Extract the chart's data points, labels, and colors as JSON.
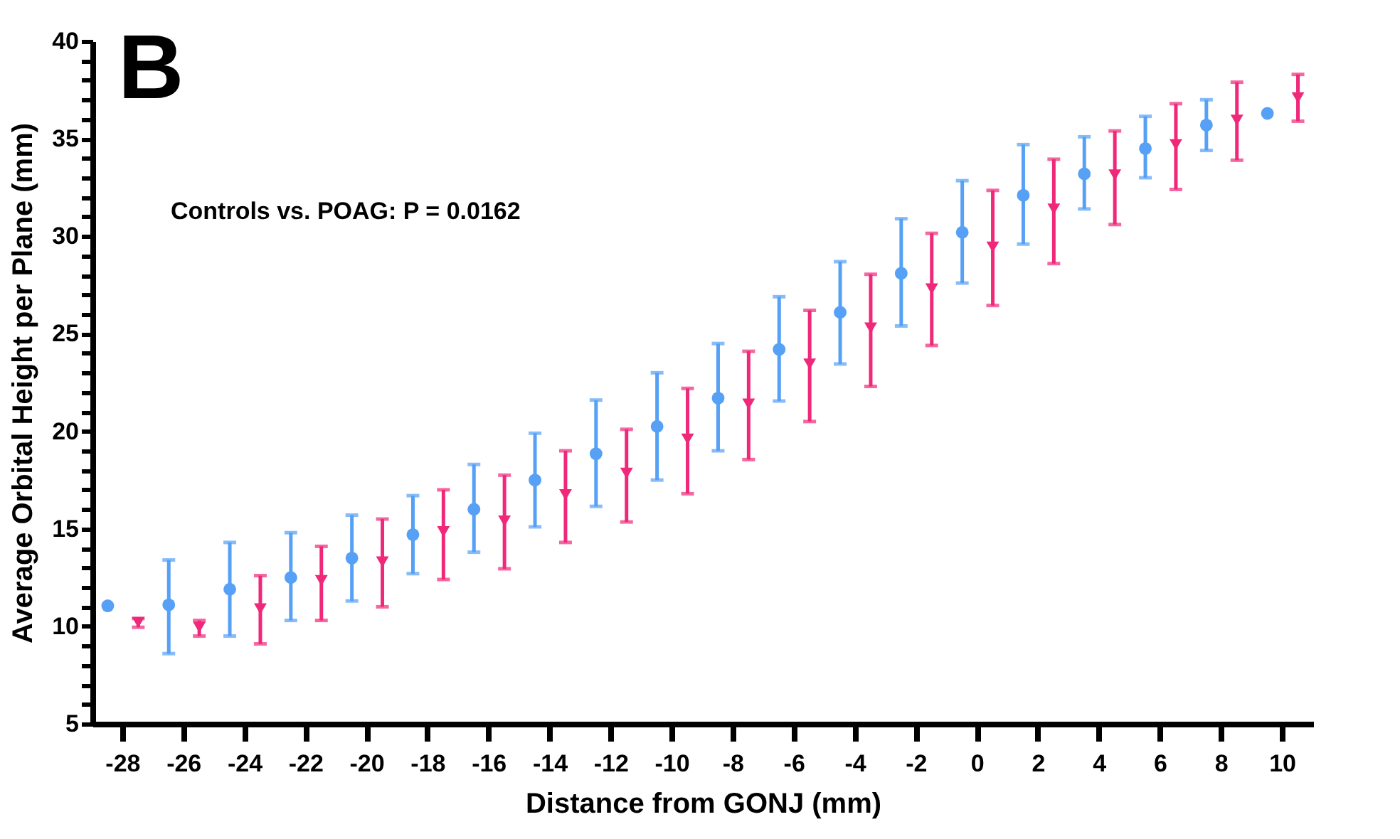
{
  "chart_data": {
    "type": "scatter",
    "title": "B",
    "xlabel": "Distance from GONJ (mm)",
    "ylabel": "Average Orbital Height per Plane (mm)",
    "annotations": [
      "Controls vs. POAG: P = 0.0162"
    ],
    "categories": [
      "-28",
      "-26",
      "-24",
      "-22",
      "-20",
      "-18",
      "-16",
      "-14",
      "-12",
      "-10",
      "-8",
      "-6",
      "-4",
      "-2",
      "0",
      "2",
      "4",
      "6",
      "8",
      "10"
    ],
    "ylim": [
      5,
      40
    ],
    "yticks": [
      5,
      {
        "value": 6,
        "label": null
      },
      {
        "value": 7,
        "label": null
      },
      {
        "value": 8,
        "label": null
      },
      {
        "value": 9,
        "label": null
      },
      10,
      {
        "value": 11,
        "label": null
      },
      {
        "value": 12,
        "label": null
      },
      {
        "value": 13,
        "label": null
      },
      {
        "value": 14,
        "label": null
      },
      15,
      {
        "value": 16,
        "label": null
      },
      {
        "value": 17,
        "label": null
      },
      {
        "value": 18,
        "label": null
      },
      {
        "value": 19,
        "label": null
      },
      20,
      {
        "value": 21,
        "label": null
      },
      {
        "value": 22,
        "label": null
      },
      {
        "value": 23,
        "label": null
      },
      {
        "value": 24,
        "label": null
      },
      25,
      {
        "value": 26,
        "label": null
      },
      {
        "value": 27,
        "label": null
      },
      {
        "value": 28,
        "label": null
      },
      {
        "value": 29,
        "label": null
      },
      30,
      {
        "value": 31,
        "label": null
      },
      {
        "value": 32,
        "label": null
      },
      {
        "value": 33,
        "label": null
      },
      {
        "value": 34,
        "label": null
      },
      35,
      {
        "value": 36,
        "label": null
      },
      {
        "value": 37,
        "label": null
      },
      {
        "value": 38,
        "label": null
      },
      {
        "value": 39,
        "label": null
      },
      40
    ],
    "grid": false,
    "series": [
      {
        "color": "#56a0f5",
        "marker": "circle",
        "values": [
          11.05,
          11.1,
          11.9,
          12.5,
          13.5,
          14.7,
          16.0,
          17.5,
          18.85,
          20.25,
          21.7,
          24.2,
          26.1,
          28.1,
          30.2,
          32.1,
          33.2,
          34.5,
          35.7,
          36.3
        ],
        "errors": [
          null,
          [
            8.6,
            13.4
          ],
          [
            9.5,
            14.3
          ],
          [
            10.3,
            14.8
          ],
          [
            11.3,
            15.7
          ],
          [
            12.7,
            16.7
          ],
          [
            13.8,
            18.3
          ],
          [
            15.1,
            19.9
          ],
          [
            16.15,
            21.6
          ],
          [
            17.5,
            23.0
          ],
          [
            19.0,
            24.5
          ],
          [
            21.55,
            26.9
          ],
          [
            23.45,
            28.7
          ],
          [
            25.4,
            30.9
          ],
          [
            27.6,
            32.85
          ],
          [
            29.6,
            34.7
          ],
          [
            31.4,
            35.1
          ],
          [
            33.0,
            36.15
          ],
          [
            34.4,
            37.0
          ],
          null
        ]
      },
      {
        "color": "#f0287a",
        "marker": "triangle-down",
        "values": [
          10.2,
          9.95,
          10.9,
          12.35,
          13.3,
          14.85,
          15.4,
          16.75,
          17.85,
          19.6,
          21.4,
          23.45,
          25.3,
          27.3,
          29.45,
          31.4,
          33.15,
          34.7,
          35.95,
          37.1
        ],
        "errors": [
          [
            9.95,
            10.4
          ],
          [
            9.5,
            10.3
          ],
          [
            9.1,
            12.6
          ],
          [
            10.3,
            14.1
          ],
          [
            11.0,
            15.5
          ],
          [
            12.4,
            17.0
          ],
          [
            12.95,
            17.75
          ],
          [
            14.3,
            19.0
          ],
          [
            15.35,
            20.1
          ],
          [
            16.8,
            22.2
          ],
          [
            18.55,
            24.1
          ],
          [
            20.5,
            26.2
          ],
          [
            22.3,
            28.05
          ],
          [
            24.4,
            30.15
          ],
          [
            26.45,
            32.35
          ],
          [
            28.6,
            33.95
          ],
          [
            30.6,
            35.4
          ],
          [
            32.4,
            36.8
          ],
          [
            33.9,
            37.9
          ],
          [
            35.9,
            38.3
          ]
        ]
      }
    ]
  }
}
